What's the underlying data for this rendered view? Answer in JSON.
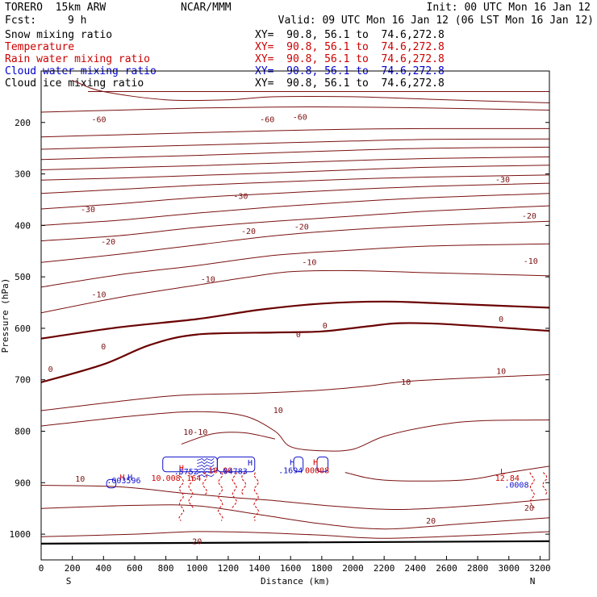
{
  "header": {
    "model": "TORERO  15km ARW",
    "center": "NCAR/MMM",
    "init": "Init: 00 UTC Mon 16 Jan 12",
    "fcst_label": "Fcst:",
    "fcst_value": "9 h",
    "valid": "Valid: 09 UTC Mon 16 Jan 12 (06 LST Mon 16 Jan 12)"
  },
  "fields": [
    {
      "label": "Snow mixing ratio",
      "color": "#000000",
      "xsect": "XY=  90.8, 56.1 to  74.6,272.8",
      "xsect_color": "#000000"
    },
    {
      "label": "Temperature",
      "color": "#cc0000",
      "xsect": "XY=  90.8, 56.1 to  74.6,272.8",
      "xsect_color": "#cc0000"
    },
    {
      "label": "Rain water mixing ratio",
      "color": "#cc0000",
      "xsect": "XY=  90.8, 56.1 to  74.6,272.8",
      "xsect_color": "#cc0000"
    },
    {
      "label": "Cloud water mixing ratio",
      "color": "#0000cc",
      "xsect": "XY=  90.8, 56.1 to  74.6,272.8",
      "xsect_color": "#0000cc"
    },
    {
      "label": "Cloud ice mixing ratio",
      "color": "#000000",
      "xsect": "XY=  90.8, 56.1 to  74.6,272.8",
      "xsect_color": "#000000"
    }
  ],
  "colors": {
    "temperature": "#7a1010",
    "zero_isotherm": "#6a0000",
    "cloud_water": "#1010cc",
    "rain_water": "#cc0000",
    "surface": "#000000"
  },
  "chart_data": {
    "type": "contour",
    "xlabel": "Distance (km)",
    "ylabel": "Pressure (hPa)",
    "x_range": [
      0,
      3260
    ],
    "y_range": [
      100,
      1050
    ],
    "y_inverted": true,
    "x_ticks": [
      0,
      200,
      400,
      600,
      800,
      1000,
      1200,
      1400,
      1600,
      1800,
      2000,
      2200,
      2400,
      2600,
      2800,
      3000,
      3200
    ],
    "y_ticks": [
      200,
      300,
      400,
      500,
      600,
      700,
      800,
      900,
      1000
    ],
    "endpoints": {
      "left": "S",
      "right": "N"
    },
    "surface_pressure": 1020,
    "temperature_isotherms": [
      {
        "level": -60,
        "points": [
          [
            300,
            140
          ],
          [
            1000,
            140
          ],
          [
            2000,
            140
          ],
          [
            3260,
            140
          ]
        ]
      },
      {
        "level": -60,
        "points": [
          [
            200,
            118
          ],
          [
            230,
            122
          ],
          [
            400,
            140
          ],
          [
            800,
            156
          ],
          [
            1200,
            156
          ],
          [
            1500,
            150
          ],
          [
            2000,
            150
          ],
          [
            2500,
            155
          ],
          [
            3260,
            162
          ]
        ]
      },
      {
        "level": -60,
        "points": [
          [
            0,
            180
          ],
          [
            500,
            176
          ],
          [
            1000,
            172
          ],
          [
            1500,
            170
          ],
          [
            2000,
            170
          ],
          [
            2500,
            172
          ],
          [
            3260,
            176
          ]
        ]
      },
      {
        "level": -60,
        "points": [
          [
            0,
            228
          ],
          [
            500,
            224
          ],
          [
            1000,
            220
          ],
          [
            1500,
            216
          ],
          [
            2000,
            213
          ],
          [
            2500,
            212
          ],
          [
            3260,
            212
          ]
        ]
      },
      {
        "level": -50,
        "points": [
          [
            0,
            252
          ],
          [
            500,
            248
          ],
          [
            1000,
            244
          ],
          [
            1500,
            240
          ],
          [
            2000,
            236
          ],
          [
            2500,
            233
          ],
          [
            3260,
            232
          ]
        ]
      },
      {
        "level": -50,
        "points": [
          [
            0,
            272
          ],
          [
            500,
            268
          ],
          [
            1000,
            264
          ],
          [
            1500,
            259
          ],
          [
            2000,
            254
          ],
          [
            2500,
            250
          ],
          [
            3260,
            248
          ]
        ]
      },
      {
        "level": -40,
        "points": [
          [
            0,
            292
          ],
          [
            500,
            288
          ],
          [
            1000,
            284
          ],
          [
            1500,
            279
          ],
          [
            2000,
            274
          ],
          [
            2500,
            270
          ],
          [
            3260,
            267
          ]
        ]
      },
      {
        "level": -40,
        "points": [
          [
            0,
            312
          ],
          [
            500,
            308
          ],
          [
            1000,
            303
          ],
          [
            1500,
            298
          ],
          [
            2000,
            292
          ],
          [
            2500,
            287
          ],
          [
            3260,
            283
          ]
        ]
      },
      {
        "level": -30,
        "points": [
          [
            0,
            338
          ],
          [
            500,
            330
          ],
          [
            1000,
            322
          ],
          [
            1500,
            316
          ],
          [
            2000,
            310
          ],
          [
            2500,
            306
          ],
          [
            3260,
            302
          ]
        ]
      },
      {
        "level": -30,
        "points": [
          [
            0,
            368
          ],
          [
            500,
            358
          ],
          [
            1000,
            346
          ],
          [
            1500,
            338
          ],
          [
            2000,
            330
          ],
          [
            2500,
            324
          ],
          [
            3260,
            318
          ]
        ]
      },
      {
        "level": -20,
        "points": [
          [
            0,
            400
          ],
          [
            500,
            390
          ],
          [
            1000,
            376
          ],
          [
            1500,
            364
          ],
          [
            2000,
            354
          ],
          [
            2500,
            346
          ],
          [
            3260,
            338
          ]
        ]
      },
      {
        "level": -20,
        "points": [
          [
            0,
            430
          ],
          [
            500,
            420
          ],
          [
            1000,
            404
          ],
          [
            1500,
            392
          ],
          [
            2000,
            382
          ],
          [
            2500,
            372
          ],
          [
            3260,
            362
          ]
        ]
      },
      {
        "level": -10,
        "points": [
          [
            0,
            472
          ],
          [
            500,
            456
          ],
          [
            1000,
            438
          ],
          [
            1500,
            420
          ],
          [
            2000,
            408
          ],
          [
            2500,
            400
          ],
          [
            3260,
            392
          ]
        ]
      },
      {
        "level": -10,
        "points": [
          [
            0,
            520
          ],
          [
            500,
            496
          ],
          [
            1000,
            478
          ],
          [
            1500,
            458
          ],
          [
            2000,
            448
          ],
          [
            2500,
            440
          ],
          [
            3260,
            436
          ]
        ]
      },
      {
        "level": -10,
        "points": [
          [
            0,
            570
          ],
          [
            500,
            540
          ],
          [
            1000,
            516
          ],
          [
            1300,
            502
          ],
          [
            1600,
            490
          ],
          [
            2000,
            488
          ],
          [
            2500,
            492
          ],
          [
            3260,
            498
          ]
        ]
      },
      {
        "level": 0,
        "points": [
          [
            0,
            620
          ],
          [
            500,
            598
          ],
          [
            1000,
            582
          ],
          [
            1400,
            564
          ],
          [
            1800,
            552
          ],
          [
            2200,
            548
          ],
          [
            2600,
            552
          ],
          [
            3260,
            560
          ]
        ]
      },
      {
        "level": 0,
        "points": [
          [
            0,
            705
          ],
          [
            400,
            670
          ],
          [
            700,
            632
          ],
          [
            1000,
            612
          ],
          [
            1500,
            608
          ],
          [
            1800,
            606
          ],
          [
            2100,
            596
          ],
          [
            2300,
            590
          ],
          [
            2600,
            592
          ],
          [
            3260,
            605
          ]
        ]
      },
      {
        "level": 10,
        "points": [
          [
            0,
            760
          ],
          [
            500,
            742
          ],
          [
            900,
            730
          ],
          [
            1400,
            726
          ],
          [
            1800,
            720
          ],
          [
            2100,
            712
          ],
          [
            2400,
            702
          ],
          [
            3260,
            690
          ]
        ]
      },
      {
        "level": 10,
        "points": [
          [
            0,
            790
          ],
          [
            600,
            770
          ],
          [
            1000,
            762
          ],
          [
            1300,
            770
          ],
          [
            1500,
            800
          ],
          [
            1600,
            830
          ],
          [
            1800,
            838
          ],
          [
            2000,
            835
          ],
          [
            2200,
            810
          ],
          [
            2500,
            790
          ],
          [
            2800,
            780
          ],
          [
            3260,
            778
          ]
        ]
      },
      {
        "level": 10,
        "points": [
          [
            900,
            825
          ],
          [
            1100,
            805
          ],
          [
            1300,
            803
          ],
          [
            1500,
            815
          ]
        ]
      },
      {
        "level": 10,
        "points": [
          [
            1950,
            880
          ],
          [
            2200,
            895
          ],
          [
            2700,
            895
          ],
          [
            3000,
            880
          ],
          [
            3260,
            868
          ]
        ]
      },
      {
        "level": 20,
        "points": [
          [
            0,
            905
          ],
          [
            500,
            908
          ],
          [
            900,
            920
          ],
          [
            1200,
            928
          ],
          [
            1500,
            935
          ],
          [
            1900,
            946
          ],
          [
            2300,
            952
          ],
          [
            2800,
            944
          ],
          [
            3260,
            932
          ]
        ]
      },
      {
        "level": 20,
        "points": [
          [
            0,
            950
          ],
          [
            600,
            944
          ],
          [
            1000,
            945
          ],
          [
            1400,
            962
          ],
          [
            1800,
            980
          ],
          [
            2200,
            990
          ],
          [
            2700,
            980
          ],
          [
            3260,
            968
          ]
        ]
      },
      {
        "level": 20,
        "points": [
          [
            0,
            1005
          ],
          [
            600,
            1000
          ],
          [
            1000,
            995
          ],
          [
            1400,
            997
          ],
          [
            1800,
            1002
          ],
          [
            2200,
            1008
          ],
          [
            2800,
            1002
          ],
          [
            3260,
            995
          ]
        ]
      }
    ],
    "cloud_water_region": {
      "pressure_range": [
        850,
        910
      ],
      "x_range": [
        420,
        1850
      ]
    },
    "rain_water_region": {
      "pressure_range": [
        890,
        980
      ],
      "x_range": [
        900,
        1400
      ]
    },
    "contour_labels": [
      {
        "text": "-60",
        "x": 370,
        "p": 195,
        "color": "temperature"
      },
      {
        "text": "-60",
        "x": 1450,
        "p": 195,
        "color": "temperature"
      },
      {
        "text": "-60",
        "x": 1660,
        "p": 190,
        "color": "temperature"
      },
      {
        "text": "-30",
        "x": 2960,
        "p": 312,
        "color": "temperature"
      },
      {
        "text": "-30",
        "x": 1280,
        "p": 344,
        "color": "temperature"
      },
      {
        "text": "-30",
        "x": 300,
        "p": 370,
        "color": "temperature"
      },
      {
        "text": "-20",
        "x": 3130,
        "p": 382,
        "color": "temperature"
      },
      {
        "text": "-20",
        "x": 1330,
        "p": 412,
        "color": "temperature"
      },
      {
        "text": "-20",
        "x": 1670,
        "p": 403,
        "color": "temperature"
      },
      {
        "text": "-20",
        "x": 430,
        "p": 432,
        "color": "temperature"
      },
      {
        "text": "-10",
        "x": 3140,
        "p": 470,
        "color": "temperature"
      },
      {
        "text": "-10",
        "x": 1720,
        "p": 472,
        "color": "temperature"
      },
      {
        "text": "-10",
        "x": 1070,
        "p": 505,
        "color": "temperature"
      },
      {
        "text": "-10",
        "x": 370,
        "p": 535,
        "color": "temperature"
      },
      {
        "text": "0",
        "x": 2950,
        "p": 583,
        "color": "temperature"
      },
      {
        "text": "0",
        "x": 1820,
        "p": 595,
        "color": "temperature"
      },
      {
        "text": "0",
        "x": 1650,
        "p": 613,
        "color": "temperature"
      },
      {
        "text": "0",
        "x": 400,
        "p": 636,
        "color": "temperature"
      },
      {
        "text": "0",
        "x": 60,
        "p": 680,
        "color": "temperature"
      },
      {
        "text": "10",
        "x": 2950,
        "p": 684,
        "color": "temperature"
      },
      {
        "text": "10",
        "x": 2340,
        "p": 705,
        "color": "temperature"
      },
      {
        "text": "10",
        "x": 1520,
        "p": 760,
        "color": "temperature"
      },
      {
        "text": "10-10",
        "x": 990,
        "p": 802,
        "color": "temperature"
      },
      {
        "text": "10",
        "x": 250,
        "p": 893,
        "color": "temperature"
      },
      {
        "text": "20",
        "x": 2500,
        "p": 975,
        "color": "temperature"
      },
      {
        "text": "20",
        "x": 3130,
        "p": 950,
        "color": "temperature"
      },
      {
        "text": "20",
        "x": 1000,
        "p": 1015,
        "color": "temperature"
      },
      {
        "text": "H",
        "x": 520,
        "p": 890,
        "color": "rain_water"
      },
      {
        "text": "H",
        "x": 570,
        "p": 890,
        "color": "cloud_water"
      },
      {
        "text": ".003596",
        "x": 530,
        "p": 896,
        "color": "cloud_water"
      },
      {
        "text": "H",
        "x": 900,
        "p": 872,
        "color": "rain_water"
      },
      {
        "text": "H",
        "x": 1340,
        "p": 862,
        "color": "cloud_water"
      },
      {
        "text": ".5752",
        "x": 930,
        "p": 879,
        "color": "cloud_water"
      },
      {
        "text": "10.00",
        "x": 1150,
        "p": 877,
        "color": "rain_water"
      },
      {
        "text": ".04783",
        "x": 1230,
        "p": 878,
        "color": "cloud_water"
      },
      {
        "text": "10.008",
        "x": 800,
        "p": 892,
        "color": "rain_water"
      },
      {
        "text": "164",
        "x": 980,
        "p": 892,
        "color": "rain_water"
      },
      {
        "text": "H",
        "x": 1610,
        "p": 861,
        "color": "cloud_water"
      },
      {
        "text": "H",
        "x": 1760,
        "p": 861,
        "color": "rain_water"
      },
      {
        "text": ".1694",
        "x": 1600,
        "p": 877,
        "color": "cloud_water"
      },
      {
        "text": "00008",
        "x": 1770,
        "p": 877,
        "color": "rain_water"
      },
      {
        "text": "L",
        "x": 2960,
        "p": 879,
        "color": "rain_water"
      },
      {
        "text": "12.84",
        "x": 2990,
        "p": 892,
        "color": "rain_water"
      },
      {
        "text": ".0008",
        "x": 3050,
        "p": 905,
        "color": "cloud_water"
      }
    ]
  }
}
